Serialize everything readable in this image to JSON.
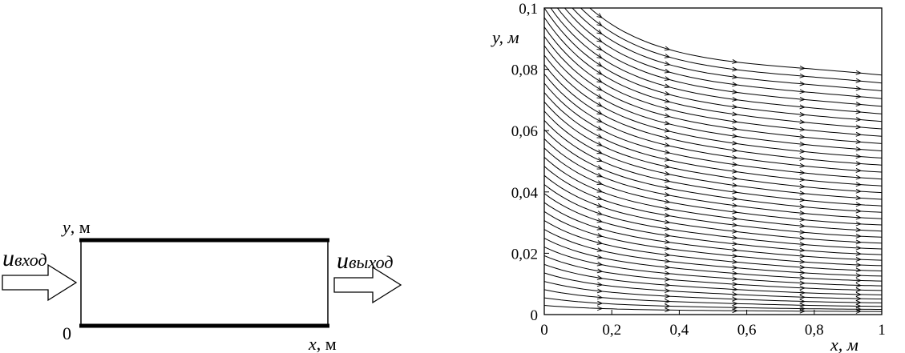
{
  "left_diagram": {
    "y_axis_label": "y",
    "y_axis_unit": "м",
    "x_axis_label": "x",
    "x_axis_unit": "м",
    "origin_label": "0",
    "inlet_label_main": "u",
    "inlet_label_sub": "вход",
    "outlet_label_main": "u",
    "outlet_label_sub": "выход"
  },
  "chart_data": {
    "type": "streamlines",
    "xlabel": "x, м",
    "ylabel": "y, м",
    "xlim": [
      0,
      1
    ],
    "ylim": [
      0,
      0.1
    ],
    "x_ticks": [
      0,
      0.2,
      0.4,
      0.6,
      0.8,
      1
    ],
    "x_tick_labels": [
      "0",
      "0,2",
      "0,4",
      "0,6",
      "0,8",
      "1"
    ],
    "y_ticks": [
      0,
      0.02,
      0.04,
      0.06,
      0.08,
      0.1
    ],
    "y_tick_labels": [
      "0",
      "0,02",
      "0,04",
      "0,06",
      "0,08",
      "0,1"
    ],
    "grid": false,
    "streamline_count": 34
  }
}
